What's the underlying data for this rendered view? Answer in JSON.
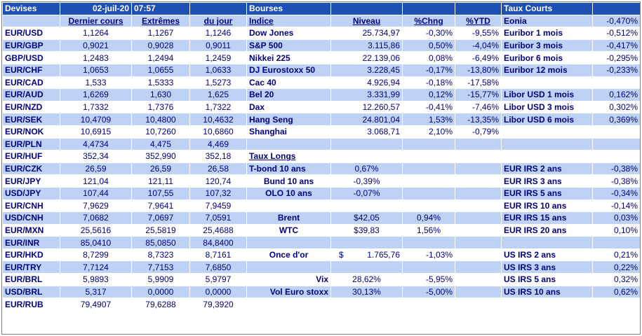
{
  "colors": {
    "header_bar": "#1e50b4",
    "stripe": "#bed2f5",
    "text": "#000080"
  },
  "header": {
    "devises": "Devises",
    "date": "02-juil-20",
    "time": "07:57",
    "bourses": "Bourses",
    "taux_courts": "Taux Courts"
  },
  "columns": {
    "dernier_cours": "Dernier cours",
    "extremes": "Extrêmes",
    "du_jour": "du jour",
    "indice": "Indice",
    "niveau": "Niveau",
    "chng": "%Chng",
    "ytd": "%YTD"
  },
  "fx": [
    {
      "pair": "EUR/USD",
      "last": "1,1264",
      "ext": "1,1267",
      "day": "1,1246"
    },
    {
      "pair": "EUR/GBP",
      "last": "0,9021",
      "ext": "0,9028",
      "day": "0,9011"
    },
    {
      "pair": "GBP/USD",
      "last": "1,2483",
      "ext": "1,2494",
      "day": "1,2459"
    },
    {
      "pair": "EUR/CHF",
      "last": "1,0653",
      "ext": "1,0655",
      "day": "1,0633"
    },
    {
      "pair": "EUR/CAD",
      "last": "1,533",
      "ext": "1,5333",
      "day": "1,5273"
    },
    {
      "pair": "EUR/AUD",
      "last": "1,6269",
      "ext": "1,630",
      "day": "1,625"
    },
    {
      "pair": "EUR/NZD",
      "last": "1,7332",
      "ext": "1,7376",
      "day": "1,7322"
    },
    {
      "pair": "EUR/SEK",
      "last": "10,4709",
      "ext": "10,4800",
      "day": "10,4632"
    },
    {
      "pair": "EUR/NOK",
      "last": "10,6915",
      "ext": "10,7260",
      "day": "10,6860"
    },
    {
      "pair": "EUR/PLN",
      "last": "4,4734",
      "ext": "4,475",
      "day": "4,469"
    },
    {
      "pair": "EUR/HUF",
      "last": "352,34",
      "ext": "352,990",
      "day": "352,18"
    },
    {
      "pair": "EUR/CZK",
      "last": "26,59",
      "ext": "26,59",
      "day": "26,58"
    },
    {
      "pair": "EUR/JPY",
      "last": "121,04",
      "ext": "121,11",
      "day": "120,74"
    },
    {
      "pair": "USD/JPY",
      "last": "107,44",
      "ext": "107,55",
      "day": "107,32"
    },
    {
      "pair": "EUR/CNH",
      "last": "7,9629",
      "ext": "7,9641",
      "day": "7,9459"
    },
    {
      "pair": "USD/CNH",
      "last": "7,0682",
      "ext": "7,0697",
      "day": "7,0591"
    },
    {
      "pair": "EUR/MXN",
      "last": "25,5616",
      "ext": "25,5819",
      "day": "25,4688"
    },
    {
      "pair": "EUR/INR",
      "last": "85,0410",
      "ext": "85,0850",
      "day": "84,8400"
    },
    {
      "pair": "EUR/HKD",
      "last": "8,7299",
      "ext": "8,7323",
      "day": "8,7161"
    },
    {
      "pair": "EUR/TRY",
      "last": "7,7124",
      "ext": "7,7153",
      "day": "7,6850"
    },
    {
      "pair": "EUR/BRL",
      "last": "5,9893",
      "ext": "5,9909",
      "day": "5,9797"
    },
    {
      "pair": "USD/BRL",
      "last": "5,317",
      "ext": "0,0000",
      "day": "0,0000"
    },
    {
      "pair": "EUR/RUB",
      "last": "79,4907",
      "ext": "79,6288",
      "day": "79,3920"
    }
  ],
  "indices": [
    {
      "name": "Dow Jones",
      "level": "25.734,97",
      "chng": "-0,30%",
      "ytd": "-9,55%"
    },
    {
      "name": "S&P 500",
      "level": "3.115,86",
      "chng": "0,50%",
      "ytd": "-4,04%"
    },
    {
      "name": "Nikkei 225",
      "level": "22.139,06",
      "chng": "0,08%",
      "ytd": "-6,49%"
    },
    {
      "name": "DJ Eurostoxx 50",
      "level": "3.228,45",
      "chng": "-0,17%",
      "ytd": "-13,80%"
    },
    {
      "name": "Cac 40",
      "level": "4.926,94",
      "chng": "-0,18%",
      "ytd": "-17,58%"
    },
    {
      "name": "Bel 20",
      "level": "3.331,99",
      "chng": "0,12%",
      "ytd": "-15,77%"
    },
    {
      "name": "Dax",
      "level": "12.260,57",
      "chng": "-0,41%",
      "ytd": "-7,46%"
    },
    {
      "name": "Hang Seng",
      "level": "24.801,04",
      "chng": "1,53%",
      "ytd": "-13,35%"
    },
    {
      "name": "Shanghai",
      "level": "3.068,71",
      "chng": "2,10%",
      "ytd": "-0,79%"
    }
  ],
  "taux_longs": {
    "title": "Taux Longs",
    "rows": [
      {
        "name": "T-bond 10 ans",
        "value": "0,67%"
      },
      {
        "name": "Bund 10 ans",
        "value": "-0,39%"
      },
      {
        "name": "OLO 10 ans",
        "value": "-0,07%"
      }
    ]
  },
  "commodities": [
    {
      "name": "Brent",
      "value": "$42,05",
      "chng": "0,94%"
    },
    {
      "name": "WTC",
      "value": "$39,83",
      "chng": "1,56%"
    }
  ],
  "gold": {
    "name": "Once d'or",
    "currency": "$",
    "value": "1.765,76",
    "chng": "-1,03%"
  },
  "vol": [
    {
      "name": "Vix",
      "value": "28,62%",
      "chng": "-5,95%"
    },
    {
      "name": "Vol Euro stoxx",
      "value": "30,13%",
      "chng": "-5,00%"
    }
  ],
  "short_rates": [
    {
      "name": "Eonia",
      "value": "-0,470%"
    },
    {
      "name": "Euribor 1 mois",
      "value": "-0,512%"
    },
    {
      "name": "Euribor 3 mois",
      "value": "-0,417%"
    },
    {
      "name": "Euribor 6 mois",
      "value": "-0,295%"
    },
    {
      "name": "Euribor 12 mois",
      "value": "-0,233%"
    },
    {
      "name": "",
      "value": ""
    },
    {
      "name": "Libor USD 1 mois",
      "value": "0,162%"
    },
    {
      "name": "Libor USD 3 mois",
      "value": "0,302%"
    },
    {
      "name": "Libor USD 6 mois",
      "value": "0,369%"
    }
  ],
  "eur_irs": [
    {
      "name": "EUR IRS 2 ans",
      "value": "-0,38%"
    },
    {
      "name": "EUR IRS 3 ans",
      "value": "-0,38%"
    },
    {
      "name": "EUR IRS 5 ans",
      "value": "-0,34%"
    },
    {
      "name": "EUR IRS 10 ans",
      "value": "-0,14%"
    },
    {
      "name": "EUR IRS 15 ans",
      "value": "0,03%"
    },
    {
      "name": "EUR IRS 20 ans",
      "value": "0,10%"
    }
  ],
  "us_irs": [
    {
      "name": "US IRS 2 ans",
      "value": "0,21%"
    },
    {
      "name": "US IRS 3 ans",
      "value": "0,22%"
    },
    {
      "name": "US IRS 5 ans",
      "value": "0,32%"
    },
    {
      "name": "US IRS 10 ans",
      "value": "0,62%"
    }
  ]
}
